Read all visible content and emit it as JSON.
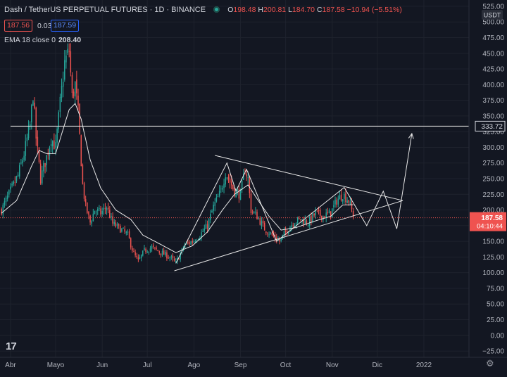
{
  "header": {
    "symbol": "Dash / TetherUS PERPETUAL FUTURES · 1D · BINANCE",
    "open_label": "O",
    "open": "198.48",
    "high_label": "H",
    "high": "200.81",
    "low_label": "L",
    "low": "184.70",
    "close_label": "C",
    "close": "187.58",
    "change": "−10.94 (−5.51%)"
  },
  "quote": {
    "bid": "187.56",
    "spread": "0.03",
    "ask": "187.59"
  },
  "indicator": {
    "label": "EMA 18 close 0",
    "value": "208.40"
  },
  "colors": {
    "background": "#131722",
    "up": "#26a69a",
    "down": "#ef5350",
    "text": "#d1d4dc",
    "ask_border": "#2962ff"
  },
  "chart_data": {
    "type": "candlestick",
    "xlabel": "",
    "ylabel": "",
    "y_axis_unit": "USDT",
    "ylim": [
      -35,
      535
    ],
    "y_ticks": [
      -25,
      0,
      25,
      50,
      75,
      100,
      125,
      150,
      175,
      200,
      225,
      250,
      275,
      300,
      325,
      350,
      375,
      400,
      425,
      450,
      475,
      500,
      525
    ],
    "y_tick_labels": [
      "−25.00",
      "0.00",
      "25.00",
      "50.00",
      "75.00",
      "100.00",
      "125.00",
      "150.00",
      "175.00",
      "200.00",
      "225.00",
      "250.00",
      "275.00",
      "300.00",
      "325.00",
      "350.00",
      "375.00",
      "400.00",
      "425.00",
      "450.00",
      "475.00",
      "500.00",
      "525.00"
    ],
    "x_labels": [
      {
        "date": "2021-04-01",
        "label": "Abr"
      },
      {
        "date": "2021-05-01",
        "label": "Mayo"
      },
      {
        "date": "2021-06-01",
        "label": "Jun"
      },
      {
        "date": "2021-07-01",
        "label": "Jul"
      },
      {
        "date": "2021-08-01",
        "label": "Ago"
      },
      {
        "date": "2021-09-01",
        "label": "Sep"
      },
      {
        "date": "2021-10-01",
        "label": "Oct"
      },
      {
        "date": "2021-11-01",
        "label": "Nov"
      },
      {
        "date": "2021-12-01",
        "label": "Dic"
      },
      {
        "date": "2022-01-01",
        "label": "2022"
      }
    ],
    "x_range": [
      "2021-03-25",
      "2022-01-31"
    ],
    "price_keypoints": [
      [
        "2021-03-26",
        200
      ],
      [
        "2021-03-31",
        225
      ],
      [
        "2021-04-06",
        255
      ],
      [
        "2021-04-10",
        290
      ],
      [
        "2021-04-14",
        335
      ],
      [
        "2021-04-16",
        385
      ],
      [
        "2021-04-18",
        315
      ],
      [
        "2021-04-21",
        250
      ],
      [
        "2021-04-25",
        285
      ],
      [
        "2021-04-28",
        315
      ],
      [
        "2021-05-01",
        300
      ],
      [
        "2021-05-04",
        370
      ],
      [
        "2021-05-07",
        435
      ],
      [
        "2021-05-10",
        455
      ],
      [
        "2021-05-12",
        380
      ],
      [
        "2021-05-14",
        400
      ],
      [
        "2021-05-16",
        355
      ],
      [
        "2021-05-19",
        240
      ],
      [
        "2021-05-21",
        205
      ],
      [
        "2021-05-24",
        180
      ],
      [
        "2021-05-27",
        200
      ],
      [
        "2021-05-31",
        195
      ],
      [
        "2021-06-04",
        205
      ],
      [
        "2021-06-08",
        178
      ],
      [
        "2021-06-13",
        170
      ],
      [
        "2021-06-18",
        160
      ],
      [
        "2021-06-22",
        130
      ],
      [
        "2021-06-25",
        118
      ],
      [
        "2021-06-29",
        135
      ],
      [
        "2021-07-04",
        140
      ],
      [
        "2021-07-10",
        132
      ],
      [
        "2021-07-16",
        125
      ],
      [
        "2021-07-20",
        115
      ],
      [
        "2021-07-23",
        130
      ],
      [
        "2021-07-26",
        145
      ],
      [
        "2021-07-31",
        150
      ],
      [
        "2021-08-05",
        160
      ],
      [
        "2021-08-10",
        175
      ],
      [
        "2021-08-14",
        205
      ],
      [
        "2021-08-19",
        230
      ],
      [
        "2021-08-22",
        260
      ],
      [
        "2021-08-25",
        245
      ],
      [
        "2021-08-28",
        230
      ],
      [
        "2021-09-01",
        225
      ],
      [
        "2021-09-04",
        265
      ],
      [
        "2021-09-06",
        250
      ],
      [
        "2021-09-08",
        200
      ],
      [
        "2021-09-12",
        190
      ],
      [
        "2021-09-17",
        170
      ],
      [
        "2021-09-22",
        160
      ],
      [
        "2021-09-27",
        150
      ],
      [
        "2021-10-01",
        165
      ],
      [
        "2021-10-06",
        180
      ],
      [
        "2021-10-11",
        185
      ],
      [
        "2021-10-16",
        180
      ],
      [
        "2021-10-21",
        195
      ],
      [
        "2021-10-26",
        190
      ],
      [
        "2021-10-31",
        195
      ],
      [
        "2021-11-04",
        215
      ],
      [
        "2021-11-08",
        225
      ],
      [
        "2021-11-12",
        215
      ],
      [
        "2021-11-14",
        200
      ],
      [
        "2021-11-15",
        187.58
      ]
    ],
    "ema_keypoints": [
      [
        "2021-03-26",
        195
      ],
      [
        "2021-04-05",
        215
      ],
      [
        "2021-04-15",
        270
      ],
      [
        "2021-04-20",
        295
      ],
      [
        "2021-04-25",
        290
      ],
      [
        "2021-05-01",
        290
      ],
      [
        "2021-05-10",
        360
      ],
      [
        "2021-05-14",
        370
      ],
      [
        "2021-05-18",
        345
      ],
      [
        "2021-05-24",
        280
      ],
      [
        "2021-05-31",
        235
      ],
      [
        "2021-06-10",
        200
      ],
      [
        "2021-06-20",
        185
      ],
      [
        "2021-06-28",
        160
      ],
      [
        "2021-07-10",
        145
      ],
      [
        "2021-07-20",
        132
      ],
      [
        "2021-07-31",
        143
      ],
      [
        "2021-08-10",
        165
      ],
      [
        "2021-08-20",
        200
      ],
      [
        "2021-08-28",
        225
      ],
      [
        "2021-09-06",
        240
      ],
      [
        "2021-09-12",
        218
      ],
      [
        "2021-09-20",
        190
      ],
      [
        "2021-09-28",
        168
      ],
      [
        "2021-10-08",
        172
      ],
      [
        "2021-10-20",
        182
      ],
      [
        "2021-10-31",
        190
      ],
      [
        "2021-11-08",
        208
      ],
      [
        "2021-11-15",
        208.4
      ]
    ],
    "horizontal_line": {
      "value": 333.72,
      "label": "333.72",
      "start": "2021-04-01"
    },
    "triangle_upper_line": [
      [
        "2021-08-15",
        287
      ],
      [
        "2021-12-18",
        215
      ]
    ],
    "triangle_lower_line": [
      [
        "2021-07-19",
        103
      ],
      [
        "2021-12-18",
        215
      ]
    ],
    "projection_path": [
      [
        "2021-07-20",
        115
      ],
      [
        "2021-08-23",
        275
      ],
      [
        "2021-08-29",
        230
      ],
      [
        "2021-09-05",
        265
      ],
      [
        "2021-09-25",
        150
      ],
      [
        "2021-11-09",
        236
      ],
      [
        "2021-11-24",
        175
      ],
      [
        "2021-12-05",
        230
      ],
      [
        "2021-12-14",
        170
      ],
      [
        "2021-12-24",
        322
      ]
    ],
    "last_price": {
      "value": 187.58,
      "label": "187.58",
      "countdown": "04:10:44"
    }
  }
}
